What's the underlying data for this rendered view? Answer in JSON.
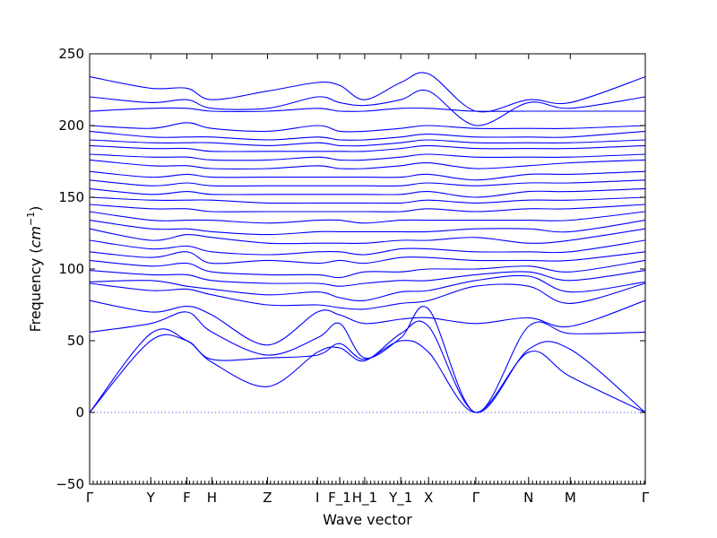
{
  "chart_data": {
    "type": "line",
    "title": "",
    "xlabel": "Wave vector",
    "ylabel": "Frequency",
    "ylabel_unit_base": "cm",
    "ylabel_unit_exp": "−1",
    "ylim": [
      -50,
      250
    ],
    "yticks": [
      -50,
      0,
      50,
      100,
      150,
      200,
      250
    ],
    "xlim": [
      0,
      100
    ],
    "grid": false,
    "legend": "none",
    "color": "#0000ff",
    "high_symmetry_points": [
      {
        "label": "Γ",
        "x": 0
      },
      {
        "label": "Y",
        "x": 11
      },
      {
        "label": "F",
        "x": 17.5
      },
      {
        "label": "H",
        "x": 22
      },
      {
        "label": "Z",
        "x": 32
      },
      {
        "label": "I",
        "x": 41
      },
      {
        "label": "F_1",
        "x": 45
      },
      {
        "label": "H_1",
        "x": 49.5
      },
      {
        "label": "Y_1",
        "x": 56
      },
      {
        "label": "X",
        "x": 61
      },
      {
        "label": "Γ",
        "x": 69.5
      },
      {
        "label": "N",
        "x": 79
      },
      {
        "label": "M",
        "x": 86.5
      },
      {
        "label": "Γ",
        "x": 100
      }
    ],
    "bands_x": [
      0,
      11,
      17.5,
      22,
      32,
      41,
      45,
      49.5,
      56,
      61,
      69.5,
      79,
      86.5,
      100
    ],
    "bands": [
      {
        "y": [
          0,
          50,
          50,
          37,
          38,
          40,
          48,
          37,
          50,
          42,
          0,
          42,
          25,
          0
        ]
      },
      {
        "y": [
          0,
          55,
          50,
          35,
          18,
          42,
          45,
          36,
          55,
          60,
          0,
          44,
          44,
          0
        ]
      },
      {
        "y": [
          56,
          62,
          70,
          56,
          40,
          52,
          62,
          38,
          52,
          72,
          0,
          60,
          55,
          56
        ]
      },
      {
        "y": [
          78,
          70,
          74,
          68,
          47,
          70,
          68,
          62,
          65,
          66,
          62,
          66,
          60,
          78
        ]
      },
      {
        "y": [
          90,
          85,
          86,
          82,
          75,
          75,
          73,
          72,
          76,
          78,
          88,
          88,
          76,
          90
        ]
      },
      {
        "y": [
          91,
          92,
          88,
          86,
          82,
          84,
          80,
          78,
          84,
          85,
          92,
          95,
          84,
          91
        ]
      },
      {
        "y": [
          99,
          96,
          96,
          92,
          90,
          90,
          88,
          90,
          92,
          92,
          96,
          98,
          92,
          99
        ]
      },
      {
        "y": [
          106,
          102,
          104,
          98,
          96,
          96,
          94,
          98,
          98,
          100,
          100,
          102,
          98,
          106
        ]
      },
      {
        "y": [
          112,
          108,
          112,
          104,
          106,
          104,
          106,
          104,
          108,
          108,
          106,
          106,
          106,
          112
        ]
      },
      {
        "y": [
          120,
          114,
          116,
          112,
          110,
          112,
          112,
          110,
          114,
          114,
          112,
          112,
          112,
          120
        ]
      },
      {
        "y": [
          128,
          120,
          124,
          122,
          118,
          118,
          118,
          118,
          120,
          120,
          122,
          118,
          120,
          128
        ]
      },
      {
        "y": [
          134,
          128,
          128,
          126,
          124,
          126,
          126,
          126,
          126,
          126,
          128,
          128,
          126,
          134
        ]
      },
      {
        "y": [
          140,
          134,
          134,
          134,
          132,
          134,
          134,
          132,
          134,
          134,
          134,
          134,
          134,
          140
        ]
      },
      {
        "y": [
          145,
          142,
          142,
          140,
          140,
          140,
          140,
          140,
          140,
          142,
          140,
          142,
          142,
          145
        ]
      },
      {
        "y": [
          150,
          148,
          148,
          148,
          146,
          146,
          146,
          146,
          146,
          148,
          146,
          148,
          148,
          150
        ]
      },
      {
        "y": [
          156,
          152,
          154,
          152,
          152,
          152,
          152,
          152,
          152,
          154,
          150,
          154,
          154,
          156
        ]
      },
      {
        "y": [
          162,
          158,
          160,
          158,
          158,
          158,
          158,
          158,
          158,
          160,
          158,
          160,
          160,
          162
        ]
      },
      {
        "y": [
          168,
          164,
          166,
          164,
          164,
          164,
          164,
          164,
          164,
          166,
          162,
          166,
          166,
          168
        ]
      },
      {
        "y": [
          176,
          172,
          172,
          170,
          170,
          172,
          170,
          170,
          172,
          174,
          170,
          172,
          174,
          176
        ]
      },
      {
        "y": [
          180,
          178,
          178,
          176,
          176,
          178,
          176,
          176,
          178,
          180,
          178,
          178,
          178,
          180
        ]
      },
      {
        "y": [
          186,
          184,
          184,
          182,
          182,
          182,
          182,
          182,
          184,
          186,
          184,
          184,
          184,
          186
        ]
      },
      {
        "y": [
          190,
          188,
          188,
          188,
          186,
          188,
          186,
          186,
          188,
          190,
          188,
          188,
          188,
          190
        ]
      },
      {
        "y": [
          196,
          192,
          192,
          192,
          190,
          192,
          190,
          190,
          192,
          194,
          192,
          192,
          192,
          196
        ]
      },
      {
        "y": [
          200,
          198,
          202,
          198,
          196,
          200,
          196,
          196,
          198,
          200,
          198,
          198,
          198,
          200
        ]
      },
      {
        "y": [
          210,
          212,
          212,
          210,
          210,
          212,
          210,
          210,
          212,
          212,
          210,
          210,
          210,
          210
        ]
      },
      {
        "y": [
          220,
          216,
          218,
          212,
          212,
          220,
          216,
          214,
          218,
          224,
          200,
          216,
          212,
          220
        ]
      },
      {
        "y": [
          234,
          226,
          226,
          218,
          224,
          230,
          228,
          218,
          230,
          236,
          210,
          218,
          216,
          234
        ]
      }
    ]
  }
}
